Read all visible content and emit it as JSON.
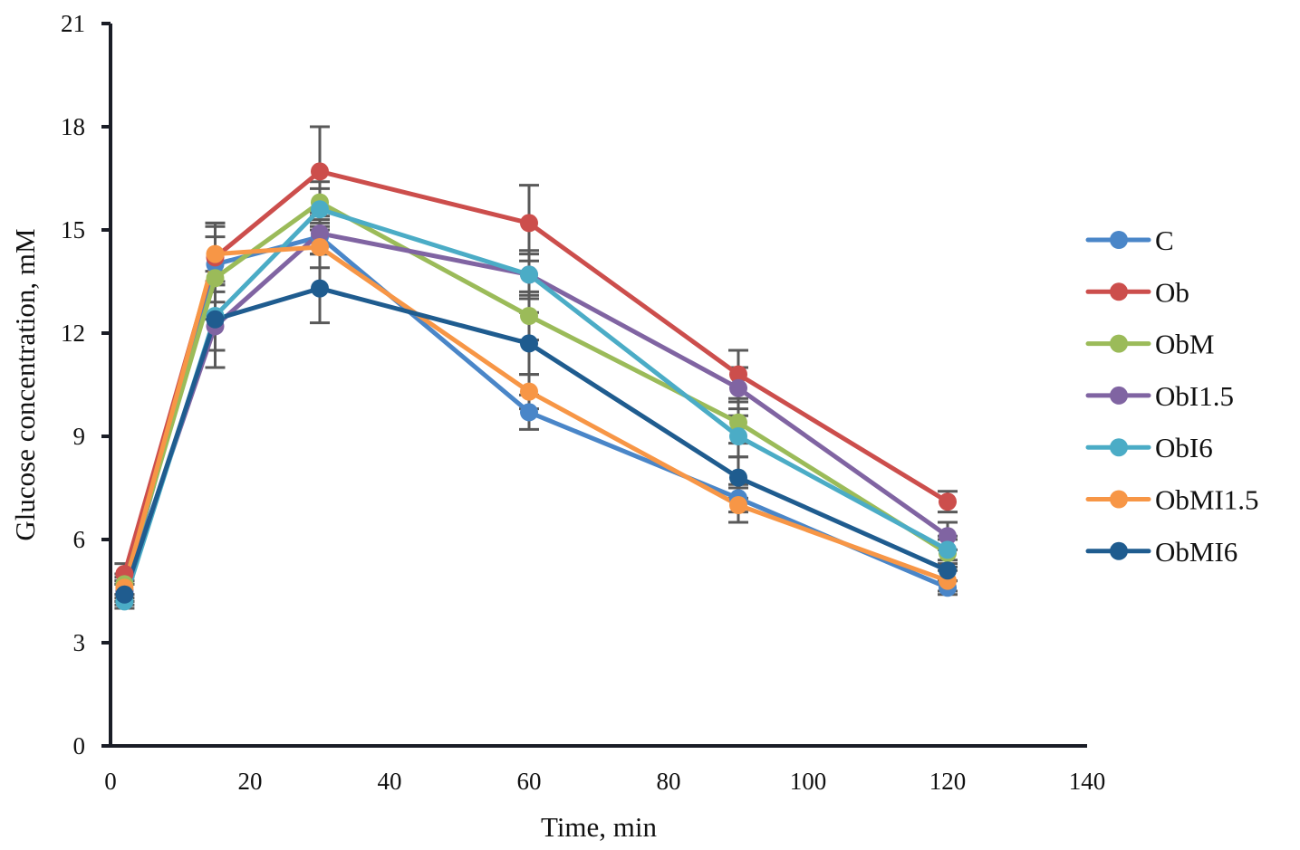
{
  "chart_data": {
    "type": "line",
    "title": "",
    "xlabel": "Time, min",
    "ylabel": "Glucose concentration, mM",
    "xlim": [
      0,
      140
    ],
    "ylim": [
      0,
      21
    ],
    "xticks": [
      0,
      20,
      40,
      60,
      80,
      100,
      120,
      140
    ],
    "yticks": [
      0,
      3,
      6,
      9,
      12,
      15,
      18,
      21
    ],
    "grid": false,
    "legend_position": "right",
    "x": [
      2,
      15,
      30,
      60,
      90,
      120
    ],
    "series": [
      {
        "name": "C",
        "color": "#4A86C8",
        "values": [
          4.5,
          14.0,
          14.8,
          9.7,
          7.2,
          4.6
        ],
        "error": [
          0.3,
          1.1,
          0.5,
          0.5,
          0.4,
          0.2
        ]
      },
      {
        "name": "Ob",
        "color": "#CC4E4C",
        "values": [
          5.0,
          14.2,
          16.7,
          15.2,
          10.8,
          7.1
        ],
        "error": [
          0.3,
          1.0,
          1.3,
          1.1,
          0.7,
          0.3
        ]
      },
      {
        "name": "ObM",
        "color": "#9BBB59",
        "values": [
          4.7,
          13.6,
          15.8,
          12.5,
          9.4,
          5.6
        ],
        "error": [
          0.3,
          1.2,
          0.6,
          0.7,
          0.6,
          0.4
        ]
      },
      {
        "name": "ObI1.5",
        "color": "#8064A2",
        "values": [
          4.5,
          12.2,
          14.9,
          13.7,
          10.4,
          6.1
        ],
        "error": [
          0.3,
          1.2,
          0.6,
          0.6,
          0.6,
          0.4
        ]
      },
      {
        "name": "ObI6",
        "color": "#4BACC6",
        "values": [
          4.2,
          12.5,
          15.6,
          13.7,
          9.0,
          5.7
        ],
        "error": [
          0.2,
          1.0,
          0.6,
          0.7,
          0.6,
          0.4
        ]
      },
      {
        "name": "ObMI1.5",
        "color": "#F79646",
        "values": [
          4.6,
          14.3,
          14.5,
          10.3,
          7.0,
          4.8
        ],
        "error": [
          0.3,
          0.9,
          0.6,
          0.5,
          0.5,
          0.3
        ]
      },
      {
        "name": "ObMI6",
        "color": "#1F5C8F",
        "values": [
          4.4,
          12.4,
          13.3,
          11.7,
          7.8,
          5.1
        ],
        "error": [
          0.3,
          1.4,
          1.0,
          0.9,
          0.6,
          0.3
        ]
      }
    ]
  }
}
